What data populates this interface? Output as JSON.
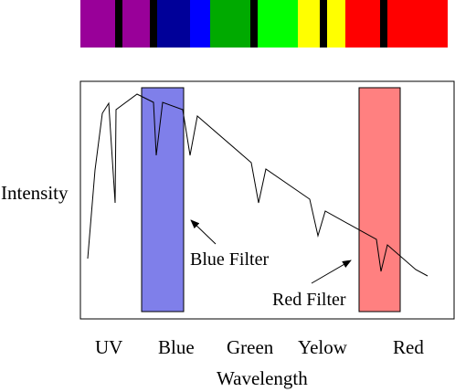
{
  "spectrum_bar": {
    "bands": [
      {
        "color": "#990099",
        "label": "violet"
      },
      {
        "color": "#000000",
        "label": "dark line"
      },
      {
        "color": "#990099",
        "label": "violet"
      },
      {
        "color": "#000000",
        "label": "dark line"
      },
      {
        "color": "#000099",
        "label": "deep blue"
      },
      {
        "color": "#0000ff",
        "label": "blue"
      },
      {
        "color": "#00aa00",
        "label": "green"
      },
      {
        "color": "#000000",
        "label": "dark line"
      },
      {
        "color": "#00ff00",
        "label": "bright green"
      },
      {
        "color": "#ffff00",
        "label": "yellow"
      },
      {
        "color": "#000000",
        "label": "dark line"
      },
      {
        "color": "#ffff00",
        "label": "yellow"
      },
      {
        "color": "#ff0000",
        "label": "red"
      },
      {
        "color": "#000000",
        "label": "dark line"
      },
      {
        "color": "#ff0000",
        "label": "red"
      }
    ]
  },
  "plot": {
    "ylabel": "Intensity",
    "xlabel": "Wavelength",
    "x_ticks": [
      "UV",
      "Blue",
      "Green",
      "Yelow",
      "Red"
    ],
    "frame_color": "#000000",
    "line_color": "#000000"
  },
  "filters": {
    "blue": {
      "label": "Blue Filter",
      "fill": "#7f7fea",
      "stroke": "#000000"
    },
    "red": {
      "label": "Red Filter",
      "fill": "#ff8080",
      "stroke": "#000000"
    }
  }
}
